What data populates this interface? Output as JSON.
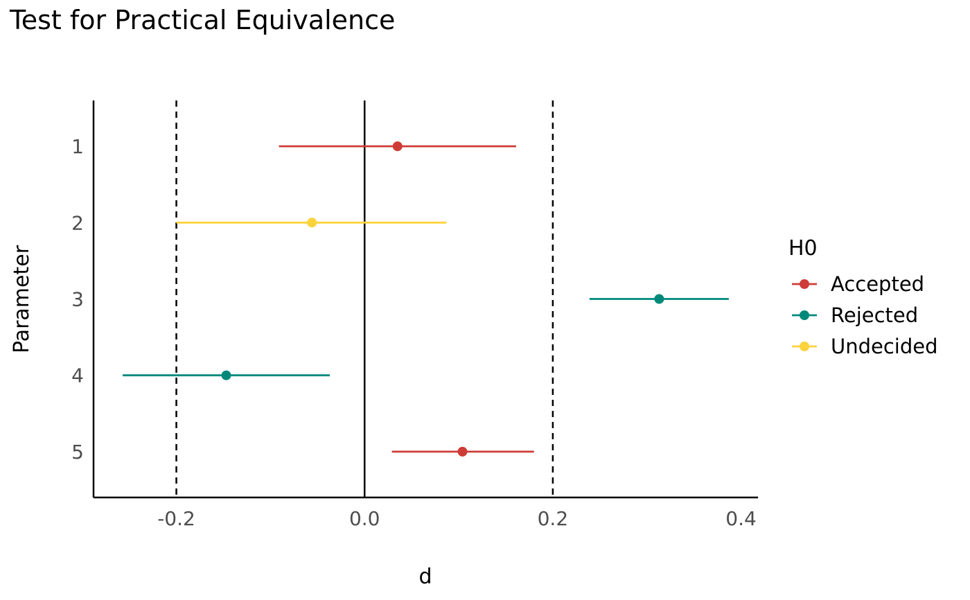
{
  "chart_data": {
    "type": "scatter",
    "subtype": "forest-plot",
    "title": "Test for Practical Equivalence",
    "xlabel": "d",
    "ylabel": "Parameter",
    "xlim": [
      -0.288,
      0.418
    ],
    "x_ticks": [
      -0.2,
      0.0,
      0.2,
      0.4
    ],
    "x_tick_labels": [
      "-0.2",
      "0.0",
      "0.2",
      "0.4"
    ],
    "categories": [
      "1",
      "2",
      "3",
      "4",
      "5"
    ],
    "rope": [
      -0.2,
      0.2
    ],
    "reference_line": 0.0,
    "grid": false,
    "points": [
      {
        "parameter": "1",
        "estimate": 0.035,
        "ci_low": -0.091,
        "ci_high": 0.161,
        "h0": "Accepted"
      },
      {
        "parameter": "2",
        "estimate": -0.056,
        "ci_low": -0.2,
        "ci_high": 0.087,
        "h0": "Undecided"
      },
      {
        "parameter": "3",
        "estimate": 0.313,
        "ci_low": 0.239,
        "ci_high": 0.387,
        "h0": "Rejected"
      },
      {
        "parameter": "4",
        "estimate": -0.147,
        "ci_low": -0.257,
        "ci_high": -0.037,
        "h0": "Rejected"
      },
      {
        "parameter": "5",
        "estimate": 0.104,
        "ci_low": 0.029,
        "ci_high": 0.18,
        "h0": "Accepted"
      }
    ],
    "legend": {
      "title": "H0",
      "placement": "right",
      "items": [
        {
          "label": "Accepted",
          "color": "#cd3c37"
        },
        {
          "label": "Rejected",
          "color": "#00897b"
        },
        {
          "label": "Undecided",
          "color": "#fbd33c"
        }
      ]
    }
  }
}
